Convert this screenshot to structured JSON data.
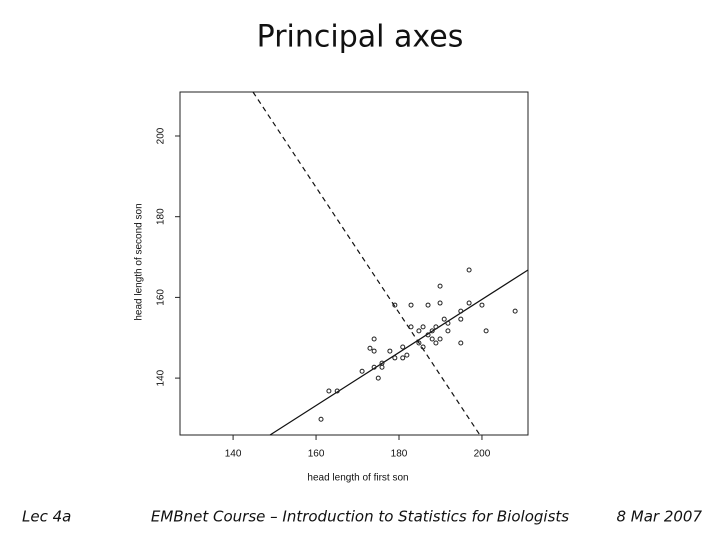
{
  "chart_data": {
    "type": "scatter",
    "title": "Principal axes",
    "x_label": "head length of first son",
    "y_label": "head length of second son",
    "xlim": [
      127.2,
      211.1
    ],
    "ylim": [
      125.9,
      210.9
    ],
    "xticks": [
      140,
      160,
      180,
      200
    ],
    "yticks": [
      140,
      160,
      180,
      200
    ],
    "grid": false,
    "color": "#222",
    "x": [
      161.2,
      163.1,
      165.1,
      171.1,
      173.0,
      174.0,
      174.0,
      174.0,
      175.0,
      175.9,
      175.9,
      177.8,
      179.0,
      179.0,
      180.9,
      180.9,
      181.9,
      182.9,
      182.9,
      184.8,
      184.8,
      185.8,
      185.8,
      187.0,
      187.0,
      188.0,
      188.0,
      188.9,
      188.9,
      189.9,
      189.9,
      189.9,
      190.9,
      191.8,
      191.8,
      194.9,
      194.9,
      194.9,
      196.9,
      196.9,
      200.0,
      201.0,
      208.0
    ],
    "values": [
      129.8,
      136.8,
      136.8,
      141.7,
      147.4,
      149.7,
      146.7,
      142.7,
      140.0,
      143.7,
      142.7,
      146.7,
      158.1,
      145.0,
      147.7,
      145.0,
      145.7,
      152.7,
      158.1,
      151.7,
      148.7,
      152.7,
      147.7,
      158.1,
      150.7,
      149.7,
      151.7,
      148.7,
      152.7,
      162.8,
      158.6,
      149.7,
      154.6,
      151.7,
      153.6,
      148.7,
      156.6,
      154.6,
      166.8,
      158.6,
      158.1,
      151.7,
      156.6
    ],
    "lines": [
      {
        "x": [
          148.9,
          211.1
        ],
        "y": [
          125.9,
          166.8
        ],
        "dashed": false
      },
      {
        "x": [
          144.8,
          199.5
        ],
        "y": [
          210.9,
          125.9
        ],
        "dashed": true
      }
    ]
  },
  "footer": {
    "left": "Lec 4a",
    "center": "EMBnet Course – Introduction to Statistics for Biologists",
    "right": "8 Mar 2007"
  }
}
